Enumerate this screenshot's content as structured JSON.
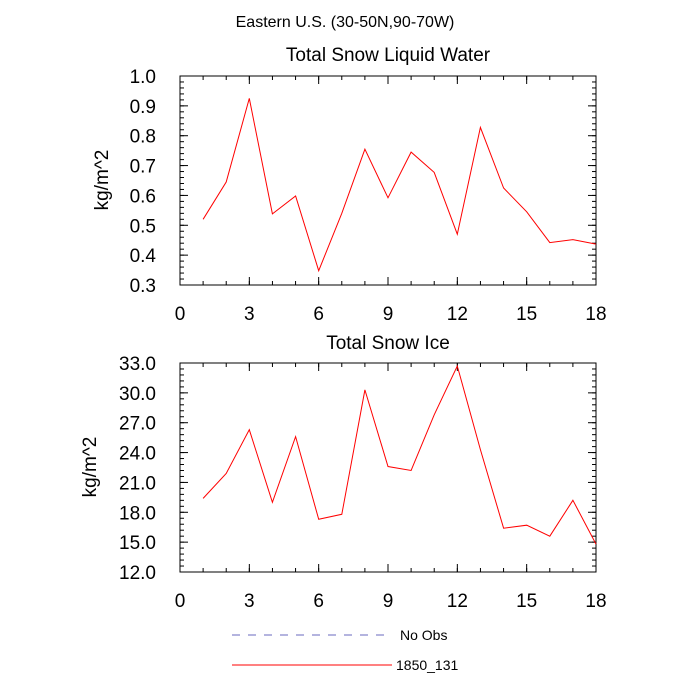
{
  "suptitle": "Eastern U.S. (30-50N,90-70W)",
  "chart_data": [
    {
      "type": "line",
      "title": "Total Snow Liquid Water",
      "xlabel": "",
      "ylabel": "kg/m^2",
      "xlim": [
        0,
        18
      ],
      "ylim": [
        0.3,
        1.0
      ],
      "xticks": [
        0,
        3,
        6,
        9,
        12,
        15,
        18
      ],
      "yticks": [
        0.3,
        0.4,
        0.5,
        0.6,
        0.7,
        0.8,
        0.9,
        1.0
      ],
      "yticklabels": [
        "0.3",
        "0.4",
        "0.5",
        "0.6",
        "0.7",
        "0.8",
        "0.9",
        "1.0"
      ],
      "series": [
        {
          "name": "1850_131",
          "color": "#ff0000",
          "x": [
            1,
            2,
            3,
            4,
            5,
            6,
            7,
            8,
            9,
            10,
            11,
            12,
            13,
            14,
            15,
            16,
            17,
            18
          ],
          "y": [
            0.52,
            0.645,
            0.925,
            0.538,
            0.598,
            0.348,
            0.54,
            0.755,
            0.592,
            0.745,
            0.677,
            0.47,
            0.828,
            0.625,
            0.545,
            0.442,
            0.452,
            0.437
          ]
        }
      ]
    },
    {
      "type": "line",
      "title": "Total Snow Ice",
      "xlabel": "",
      "ylabel": "kg/m^2",
      "xlim": [
        0,
        18
      ],
      "ylim": [
        12.0,
        33.0
      ],
      "xticks": [
        0,
        3,
        6,
        9,
        12,
        15,
        18
      ],
      "yticks": [
        12,
        15,
        18,
        21,
        24,
        27,
        30,
        33
      ],
      "yticklabels": [
        "12.0",
        "15.0",
        "18.0",
        "21.0",
        "24.0",
        "27.0",
        "30.0",
        "33.0"
      ],
      "series": [
        {
          "name": "1850_131",
          "color": "#ff0000",
          "x": [
            1,
            2,
            3,
            4,
            5,
            6,
            7,
            8,
            9,
            10,
            11,
            12,
            13,
            14,
            15,
            16,
            17,
            18
          ],
          "y": [
            19.4,
            21.9,
            26.3,
            19.0,
            25.6,
            17.3,
            17.8,
            30.3,
            22.6,
            22.2,
            27.8,
            32.7,
            24.3,
            16.4,
            16.7,
            15.6,
            19.2,
            14.8
          ]
        }
      ]
    }
  ],
  "legend": [
    {
      "label": "No Obs",
      "color": "#6a6abf",
      "style": "dashed"
    },
    {
      "label": "1850_131",
      "color": "#ff0000",
      "style": "solid"
    }
  ]
}
